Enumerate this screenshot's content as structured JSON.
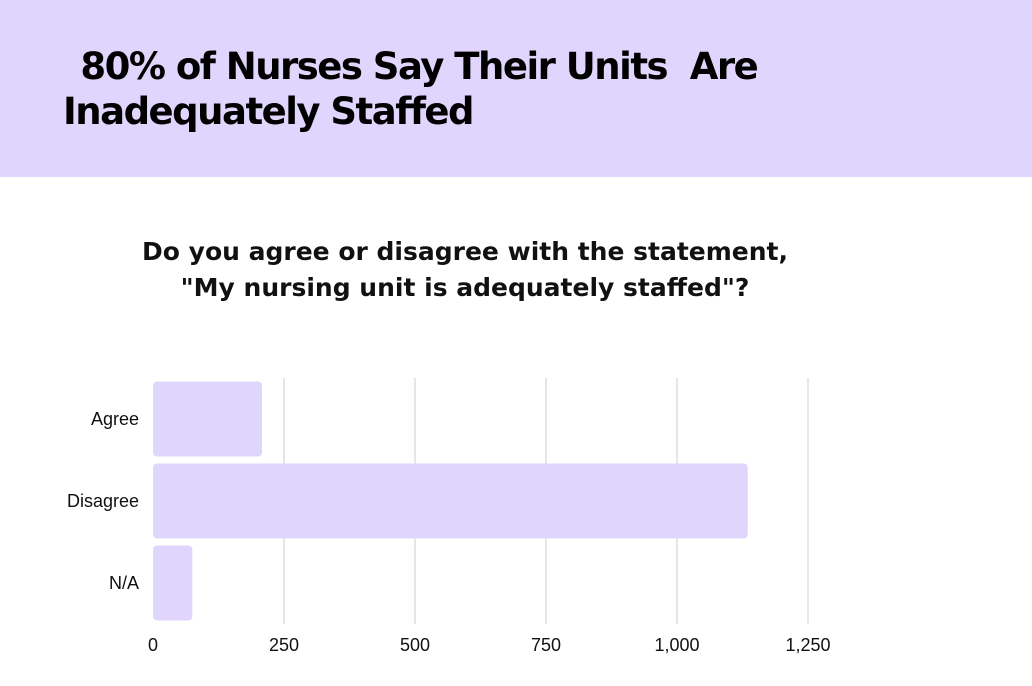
{
  "header": {
    "title_line1": " 80% of Nurses Say Their Units  Are",
    "title_line2": "Inadequately Staffed",
    "background_color": "#e0d6fd"
  },
  "chart_data": {
    "type": "bar",
    "orientation": "horizontal",
    "title_line1": "Do you agree or disagree with the statement,",
    "title_line2": "\"My nursing unit is adequately staffed\"?",
    "categories": [
      "Agree",
      "Disagree",
      "N/A"
    ],
    "values": [
      208,
      1135,
      75
    ],
    "xlim": [
      0,
      1250
    ],
    "xticks": [
      0,
      250,
      500,
      750,
      1000,
      1250
    ],
    "xtick_labels": [
      "0",
      "250",
      "500",
      "750",
      "1,000",
      "1,250"
    ],
    "xlabel": "",
    "ylabel": "",
    "grid": "vertical",
    "bar_color": "#e0d6fd",
    "legend": "none"
  }
}
